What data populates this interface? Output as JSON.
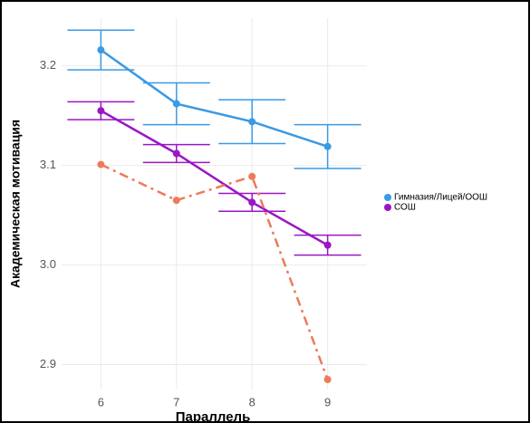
{
  "chart_data": {
    "type": "line",
    "x_label": "Параллель",
    "y_label": "Академическая мотивация",
    "x": [
      6,
      7,
      8,
      9
    ],
    "xlim": [
      5.48,
      9.52
    ],
    "xticks": [
      6,
      7,
      8,
      9
    ],
    "ylim": [
      2.875,
      3.248
    ],
    "yticks": [
      {
        "value": 2.9,
        "label": "2.9"
      },
      {
        "value": 3.0,
        "label": "3.0"
      },
      {
        "value": 3.1,
        "label": "3.1"
      },
      {
        "value": 3.2,
        "label": "3.2"
      }
    ],
    "grid": true,
    "series": [
      {
        "name": "Гимназия/Лицей/ООШ",
        "color": "#3a9ae4",
        "values": [
          3.216,
          3.162,
          3.144,
          3.119
        ],
        "errors": [
          0.02,
          0.021,
          0.022,
          0.022
        ]
      },
      {
        "name": "СОШ",
        "color": "#9a16c3",
        "values": [
          3.155,
          3.112,
          3.063,
          3.02
        ],
        "errors": [
          0.009,
          0.009,
          0.009,
          0.01
        ]
      },
      {
        "color": "#ee7a5a",
        "dashed": true,
        "values": [
          3.101,
          3.065,
          3.089,
          2.885
        ]
      }
    ]
  }
}
